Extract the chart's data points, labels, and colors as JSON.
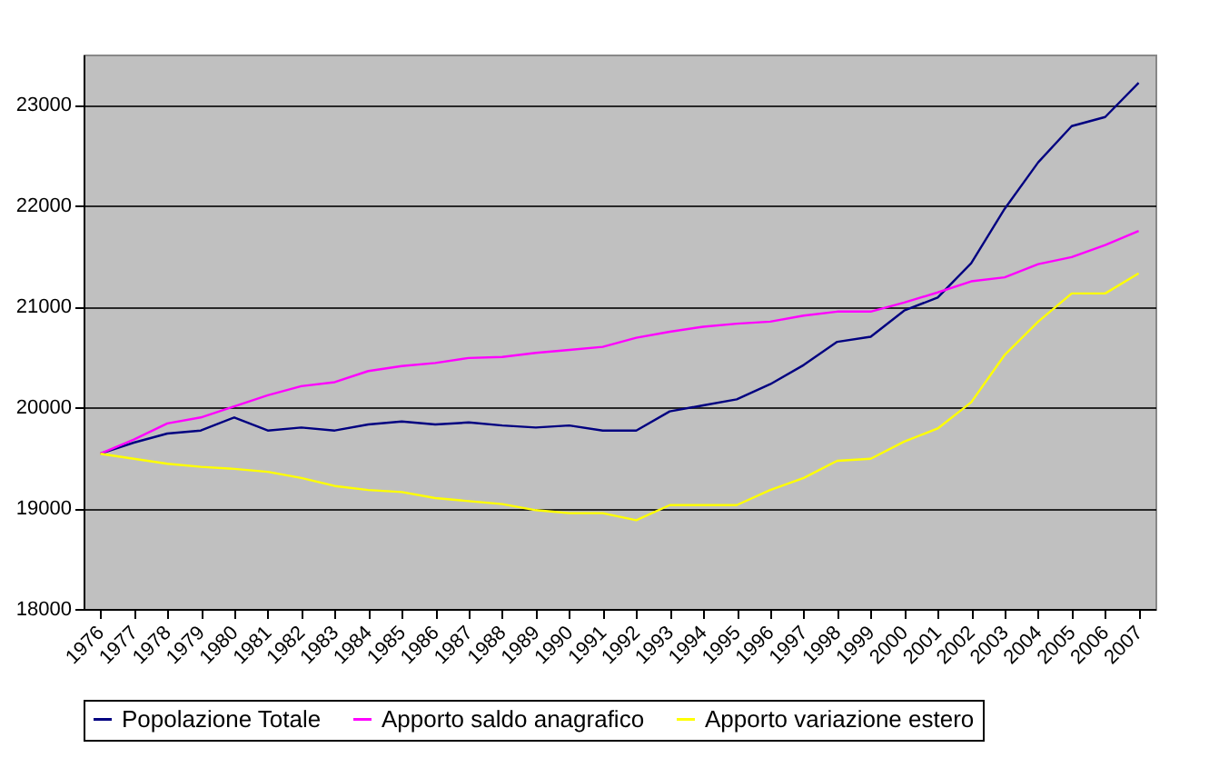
{
  "chart_data": {
    "type": "line",
    "categories": [
      "1976",
      "1977",
      "1978",
      "1979",
      "1980",
      "1981",
      "1982",
      "1983",
      "1984",
      "1985",
      "1986",
      "1987",
      "1988",
      "1989",
      "1990",
      "1991",
      "1992",
      "1993",
      "1994",
      "1995",
      "1996",
      "1997",
      "1998",
      "1999",
      "2000",
      "2001",
      "2002",
      "2003",
      "2004",
      "2005",
      "2006",
      "2007"
    ],
    "series": [
      {
        "name": "Popolazione Totale",
        "color": "#000080",
        "values": [
          19540,
          19650,
          19740,
          19770,
          19900,
          19770,
          19800,
          19770,
          19830,
          19860,
          19830,
          19850,
          19820,
          19800,
          19820,
          19770,
          19770,
          19960,
          20020,
          20080,
          20230,
          20420,
          20650,
          20700,
          20960,
          21090,
          21430,
          21970,
          22430,
          22790,
          22880,
          23220
        ]
      },
      {
        "name": "Apporto saldo anagrafico",
        "color": "#ff00ff",
        "values": [
          19540,
          19680,
          19840,
          19900,
          20010,
          20120,
          20210,
          20250,
          20360,
          20410,
          20440,
          20490,
          20500,
          20540,
          20570,
          20600,
          20690,
          20750,
          20800,
          20830,
          20850,
          20910,
          20950,
          20950,
          21040,
          21140,
          21250,
          21290,
          21420,
          21490,
          21610,
          21750
        ]
      },
      {
        "name": "Apporto variazione estero",
        "color": "#ffff00",
        "values": [
          19540,
          19490,
          19440,
          19410,
          19390,
          19360,
          19300,
          19220,
          19180,
          19160,
          19100,
          19070,
          19040,
          18980,
          18950,
          18950,
          18880,
          19030,
          19030,
          19030,
          19180,
          19300,
          19470,
          19490,
          19660,
          19790,
          20050,
          20520,
          20850,
          21130,
          21130,
          21330
        ]
      }
    ],
    "ylim": [
      18000,
      23500
    ],
    "yticks": [
      18000,
      19000,
      20000,
      21000,
      22000,
      23000
    ],
    "grid": "y",
    "legend": "bottom",
    "marker": "none",
    "line_style": "solid"
  }
}
